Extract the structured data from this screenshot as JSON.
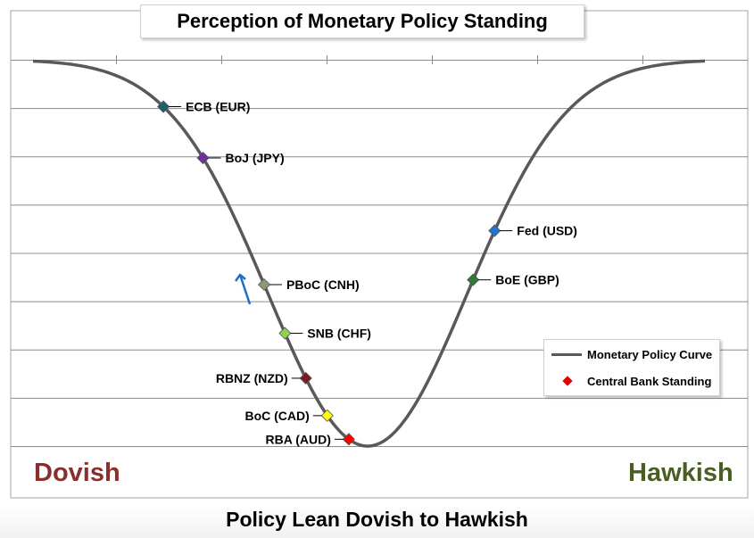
{
  "chart_data": {
    "type": "line",
    "title": "Perception of Monetary Policy Standing",
    "xlabel": "Policy Lean Dovish to Hawkish",
    "ylabel": "",
    "end_labels": {
      "left": {
        "text": "Dovish",
        "color": "#8b2e2e"
      },
      "right": {
        "text": "Hawkish",
        "color": "#4a5d23"
      }
    },
    "grid": true,
    "x_range": [
      0,
      100
    ],
    "y_range": [
      0,
      8
    ],
    "legend": {
      "placement": "bottom-right",
      "entries": [
        "Monetary Policy Curve",
        "Central Bank Standing"
      ]
    },
    "series": [
      {
        "name": "Monetary Policy Curve",
        "color": "#595959",
        "curve": {
          "center": 49.8,
          "sigma": 14.8,
          "depth": 8
        }
      }
    ],
    "points": [
      {
        "label": "ECB (EUR)",
        "x": 19.4,
        "y": 7.6,
        "color": "#1f5f6b",
        "label_side": "right"
      },
      {
        "label": "BoJ (JPY)",
        "x": 25.3,
        "y": 6.6,
        "color": "#7030a0",
        "label_side": "right"
      },
      {
        "label": "PBoC (CNH)",
        "x": 34.4,
        "y": 4.0,
        "color": "#8a9a78",
        "label_side": "right"
      },
      {
        "label": "SNB (CHF)",
        "x": 37.5,
        "y": 2.7,
        "color": "#92d050",
        "label_side": "right"
      },
      {
        "label": "RBNZ (NZD)",
        "x": 40.6,
        "y": 1.6,
        "color": "#7b1c1c",
        "label_side": "left"
      },
      {
        "label": "BoC (CAD)",
        "x": 43.8,
        "y": 0.5,
        "color": "#ffff00",
        "label_side": "left"
      },
      {
        "label": "RBA (AUD)",
        "x": 47.0,
        "y": -0.3,
        "color": "#ff0000",
        "label_side": "left"
      },
      {
        "label": "BoE (GBP)",
        "x": 65.5,
        "y": 4.0,
        "color": "#2e7d32",
        "label_side": "right"
      },
      {
        "label": "Fed (USD)",
        "x": 68.7,
        "y": 5.2,
        "color": "#1f77d0",
        "label_side": "right"
      }
    ],
    "annotations": [
      {
        "type": "arrow",
        "direction": "up",
        "near": "PBoC (CNH)",
        "color": "#1f6fc6"
      }
    ]
  }
}
